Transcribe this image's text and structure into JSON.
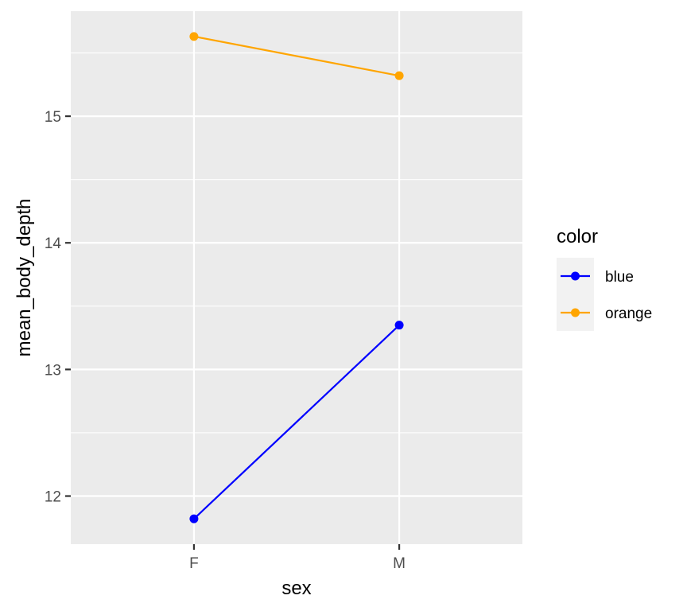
{
  "chart_data": {
    "type": "line",
    "categories": [
      "F",
      "M"
    ],
    "series": [
      {
        "name": "blue",
        "values": [
          11.82,
          13.35
        ],
        "color": "#0000ff"
      },
      {
        "name": "orange",
        "values": [
          15.63,
          15.32
        ],
        "color": "#ffa500"
      }
    ],
    "xlabel": "sex",
    "ylabel": "mean_body_depth",
    "ylim": [
      11.62,
      15.83
    ],
    "yticks": [
      12,
      13,
      14,
      15
    ],
    "ytick_labels": [
      "12",
      "13",
      "14",
      "15"
    ],
    "grid": true,
    "legend": {
      "title": "color",
      "placement": "right"
    },
    "panel_color": "#ebebeb",
    "grid_color": "#ffffff"
  }
}
